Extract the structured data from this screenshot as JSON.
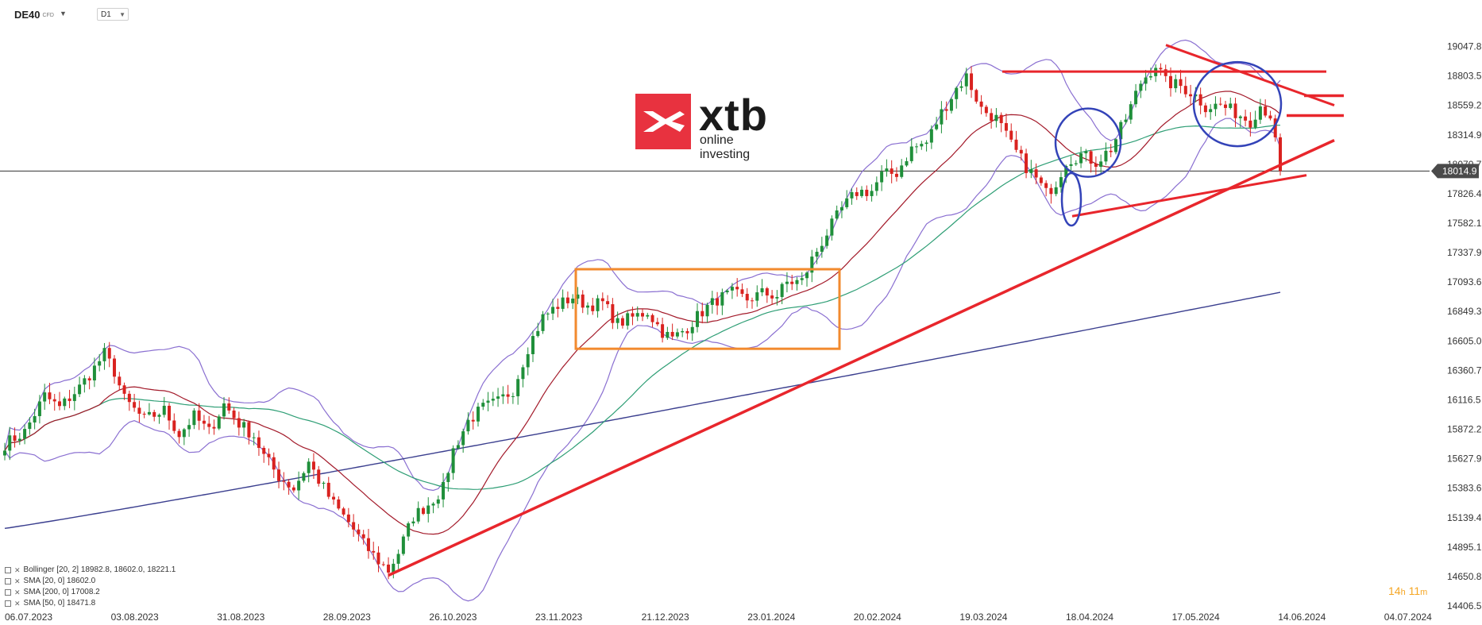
{
  "header": {
    "symbol": "DE40",
    "symbol_tag": "CFD",
    "timeframe": "D1"
  },
  "logo": {
    "name": "xtb",
    "tagline": "online investing"
  },
  "price_axis": {
    "ticks": [
      "19047.8",
      "18803.5",
      "18559.2",
      "18314.9",
      "18070.7",
      "17826.4",
      "17582.1",
      "17337.9",
      "17093.6",
      "16849.3",
      "16605.0",
      "16360.7",
      "16116.5",
      "15872.2",
      "15627.9",
      "15383.6",
      "15139.4",
      "14895.1",
      "14650.8",
      "14406.5"
    ],
    "current_price": "18014.9",
    "current_price_color": "#4a4a4a"
  },
  "time_axis": {
    "labels": [
      "06.07.2023",
      "03.08.2023",
      "31.08.2023",
      "28.09.2023",
      "26.10.2023",
      "23.11.2023",
      "21.12.2023",
      "23.01.2024",
      "20.02.2024",
      "19.03.2024",
      "18.04.2024",
      "17.05.2024",
      "14.06.2024",
      "04.07.2024"
    ]
  },
  "indicators": [
    {
      "label": "Bollinger  [20,  2]  18982.8,   18602.0,   18221.1"
    },
    {
      "label": "SMA  [20,  0]  18602.0"
    },
    {
      "label": "SMA  [200,  0]  17008.2"
    },
    {
      "label": "SMA  [50,  0]  18471.8"
    }
  ],
  "timer": {
    "hours": "14",
    "h": "h",
    "minutes": "11",
    "m": "m"
  },
  "colors": {
    "bull": "#1f8f3a",
    "bear": "#d9221f",
    "bollinger": "#8a6fd1",
    "sma20": "#a31a2a",
    "sma50": "#2e9e75",
    "sma200": "#3b3f8f",
    "annotation_red": "#e8262c",
    "annotation_orange": "#f28a2e",
    "annotation_blue": "#3343b8"
  },
  "chart_data": {
    "type": "candlestick",
    "instrument": "DE40",
    "timeframe": "D1",
    "ylim": [
      14406.5,
      19170
    ],
    "x_dates": [
      "06.07.2023",
      "03.08.2023",
      "31.08.2023",
      "28.09.2023",
      "26.10.2023",
      "23.11.2023",
      "21.12.2023",
      "23.01.2024",
      "20.02.2024",
      "19.03.2024",
      "18.04.2024",
      "17.05.2024",
      "14.06.2024",
      "04.07.2024"
    ],
    "close_path": [
      [
        0,
        15750
      ],
      [
        4,
        15850
      ],
      [
        8,
        16150
      ],
      [
        11,
        16050
      ],
      [
        15,
        16220
      ],
      [
        18,
        16380
      ],
      [
        20,
        16500
      ],
      [
        22,
        16350
      ],
      [
        24,
        16120
      ],
      [
        28,
        15950
      ],
      [
        32,
        16030
      ],
      [
        35,
        15830
      ],
      [
        38,
        15980
      ],
      [
        41,
        15850
      ],
      [
        44,
        16080
      ],
      [
        47,
        15920
      ],
      [
        50,
        15820
      ],
      [
        52,
        15650
      ],
      [
        55,
        15480
      ],
      [
        58,
        15380
      ],
      [
        61,
        15600
      ],
      [
        63,
        15450
      ],
      [
        66,
        15250
      ],
      [
        69,
        15100
      ],
      [
        72,
        14920
      ],
      [
        75,
        14780
      ],
      [
        77,
        14700
      ],
      [
        79,
        14850
      ],
      [
        82,
        15150
      ],
      [
        85,
        15250
      ],
      [
        88,
        15380
      ],
      [
        90,
        15700
      ],
      [
        93,
        15940
      ],
      [
        96,
        16050
      ],
      [
        99,
        16100
      ],
      [
        102,
        16200
      ],
      [
        105,
        16550
      ],
      [
        108,
        16800
      ],
      [
        111,
        16900
      ],
      [
        114,
        16970
      ],
      [
        117,
        16900
      ],
      [
        120,
        16920
      ],
      [
        123,
        16750
      ],
      [
        126,
        16800
      ],
      [
        129,
        16850
      ],
      [
        132,
        16680
      ],
      [
        134,
        16620
      ],
      [
        137,
        16720
      ],
      [
        140,
        16850
      ],
      [
        143,
        16950
      ],
      [
        146,
        17000
      ],
      [
        149,
        16950
      ],
      [
        152,
        17000
      ],
      [
        155,
        16980
      ],
      [
        157,
        17090
      ],
      [
        160,
        17100
      ],
      [
        162,
        17280
      ],
      [
        165,
        17500
      ],
      [
        168,
        17700
      ],
      [
        171,
        17840
      ],
      [
        174,
        17850
      ],
      [
        176,
        17980
      ],
      [
        179,
        18000
      ],
      [
        182,
        18200
      ],
      [
        185,
        18250
      ],
      [
        188,
        18500
      ],
      [
        191,
        18700
      ],
      [
        193,
        18800
      ],
      [
        196,
        18530
      ],
      [
        199,
        18450
      ],
      [
        202,
        18230
      ],
      [
        205,
        18050
      ],
      [
        207,
        17950
      ],
      [
        209,
        17830
      ],
      [
        211,
        17920
      ],
      [
        213,
        18100
      ],
      [
        216,
        18150
      ],
      [
        219,
        18090
      ],
      [
        222,
        18200
      ],
      [
        225,
        18450
      ],
      [
        228,
        18750
      ],
      [
        231,
        18900
      ],
      [
        233,
        18750
      ],
      [
        236,
        18720
      ],
      [
        239,
        18640
      ],
      [
        241,
        18550
      ],
      [
        244,
        18560
      ],
      [
        247,
        18500
      ],
      [
        250,
        18430
      ],
      [
        252,
        18560
      ],
      [
        254,
        18480
      ],
      [
        256,
        18014.9
      ]
    ],
    "indicators": {
      "bollinger": {
        "period": 20,
        "k": 2,
        "upper": 18982.8,
        "middle": 18602.0,
        "lower": 18221.1
      },
      "sma20": 18602.0,
      "sma50": 18471.8,
      "sma200": 17008.2
    },
    "last_price": 18014.9
  }
}
